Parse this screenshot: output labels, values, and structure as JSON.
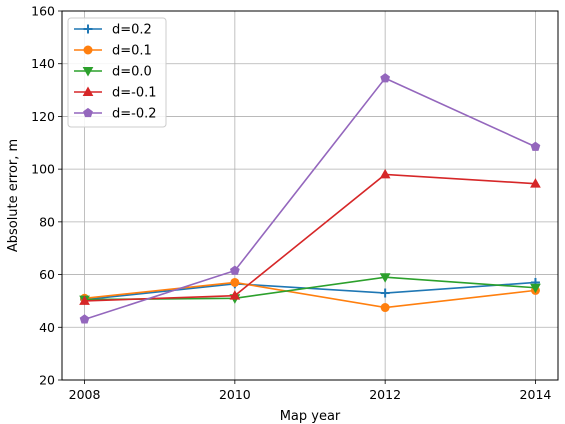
{
  "chart_data": {
    "type": "line",
    "xlabel": "Map year",
    "ylabel": "Absolute error, m",
    "x": [
      2008,
      2010,
      2012,
      2014
    ],
    "xlim": [
      2007.7,
      2014.3
    ],
    "ylim": [
      20,
      160
    ],
    "xticks": [
      2008,
      2010,
      2012,
      2014
    ],
    "yticks": [
      20,
      40,
      60,
      80,
      100,
      120,
      140,
      160
    ],
    "grid": true,
    "legend_position": "top-left",
    "series": [
      {
        "name": "d=0.2",
        "values": [
          50.5,
          56.5,
          53.0,
          57.0
        ],
        "color": "#1f77b4",
        "marker": "plus"
      },
      {
        "name": "d=0.1",
        "values": [
          51.0,
          57.0,
          47.5,
          54.0
        ],
        "color": "#ff7f0e",
        "marker": "circle"
      },
      {
        "name": "d=0.0",
        "values": [
          50.5,
          51.0,
          59.0,
          55.0
        ],
        "color": "#2ca02c",
        "marker": "triangle-down"
      },
      {
        "name": "d=-0.1",
        "values": [
          50.0,
          52.0,
          98.0,
          94.5
        ],
        "color": "#d62728",
        "marker": "triangle-up"
      },
      {
        "name": "d=-0.2",
        "values": [
          43.0,
          61.5,
          134.5,
          108.5
        ],
        "color": "#9467bd",
        "marker": "pentagon"
      }
    ]
  }
}
